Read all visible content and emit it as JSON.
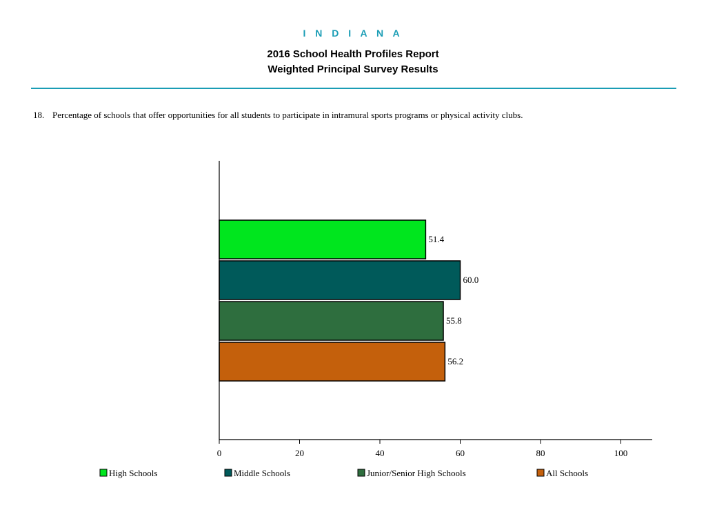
{
  "header": {
    "state": "I N D I A N A",
    "title_line1": "2016 School Health Profiles Report",
    "title_line2": "Weighted Principal Survey Results"
  },
  "question": {
    "number": "18.",
    "text": "Percentage of schools that offer opportunities for all students to participate in intramural sports programs or physical activity clubs."
  },
  "chart_data": {
    "type": "bar",
    "orientation": "horizontal",
    "categories": [
      "High Schools",
      "Middle Schools",
      "Junior/Senior High Schools",
      "All Schools"
    ],
    "values": [
      51.4,
      60.0,
      55.8,
      56.2
    ],
    "value_labels": [
      "51.4",
      "60.0",
      "55.8",
      "56.2"
    ],
    "colors": [
      "#00e61e",
      "#005a5a",
      "#2e6e3e",
      "#c4600c"
    ],
    "xlim": [
      0,
      108
    ],
    "xticks": [
      0,
      20,
      40,
      60,
      80,
      100
    ],
    "legend_placement": "bottom",
    "grid": false
  }
}
